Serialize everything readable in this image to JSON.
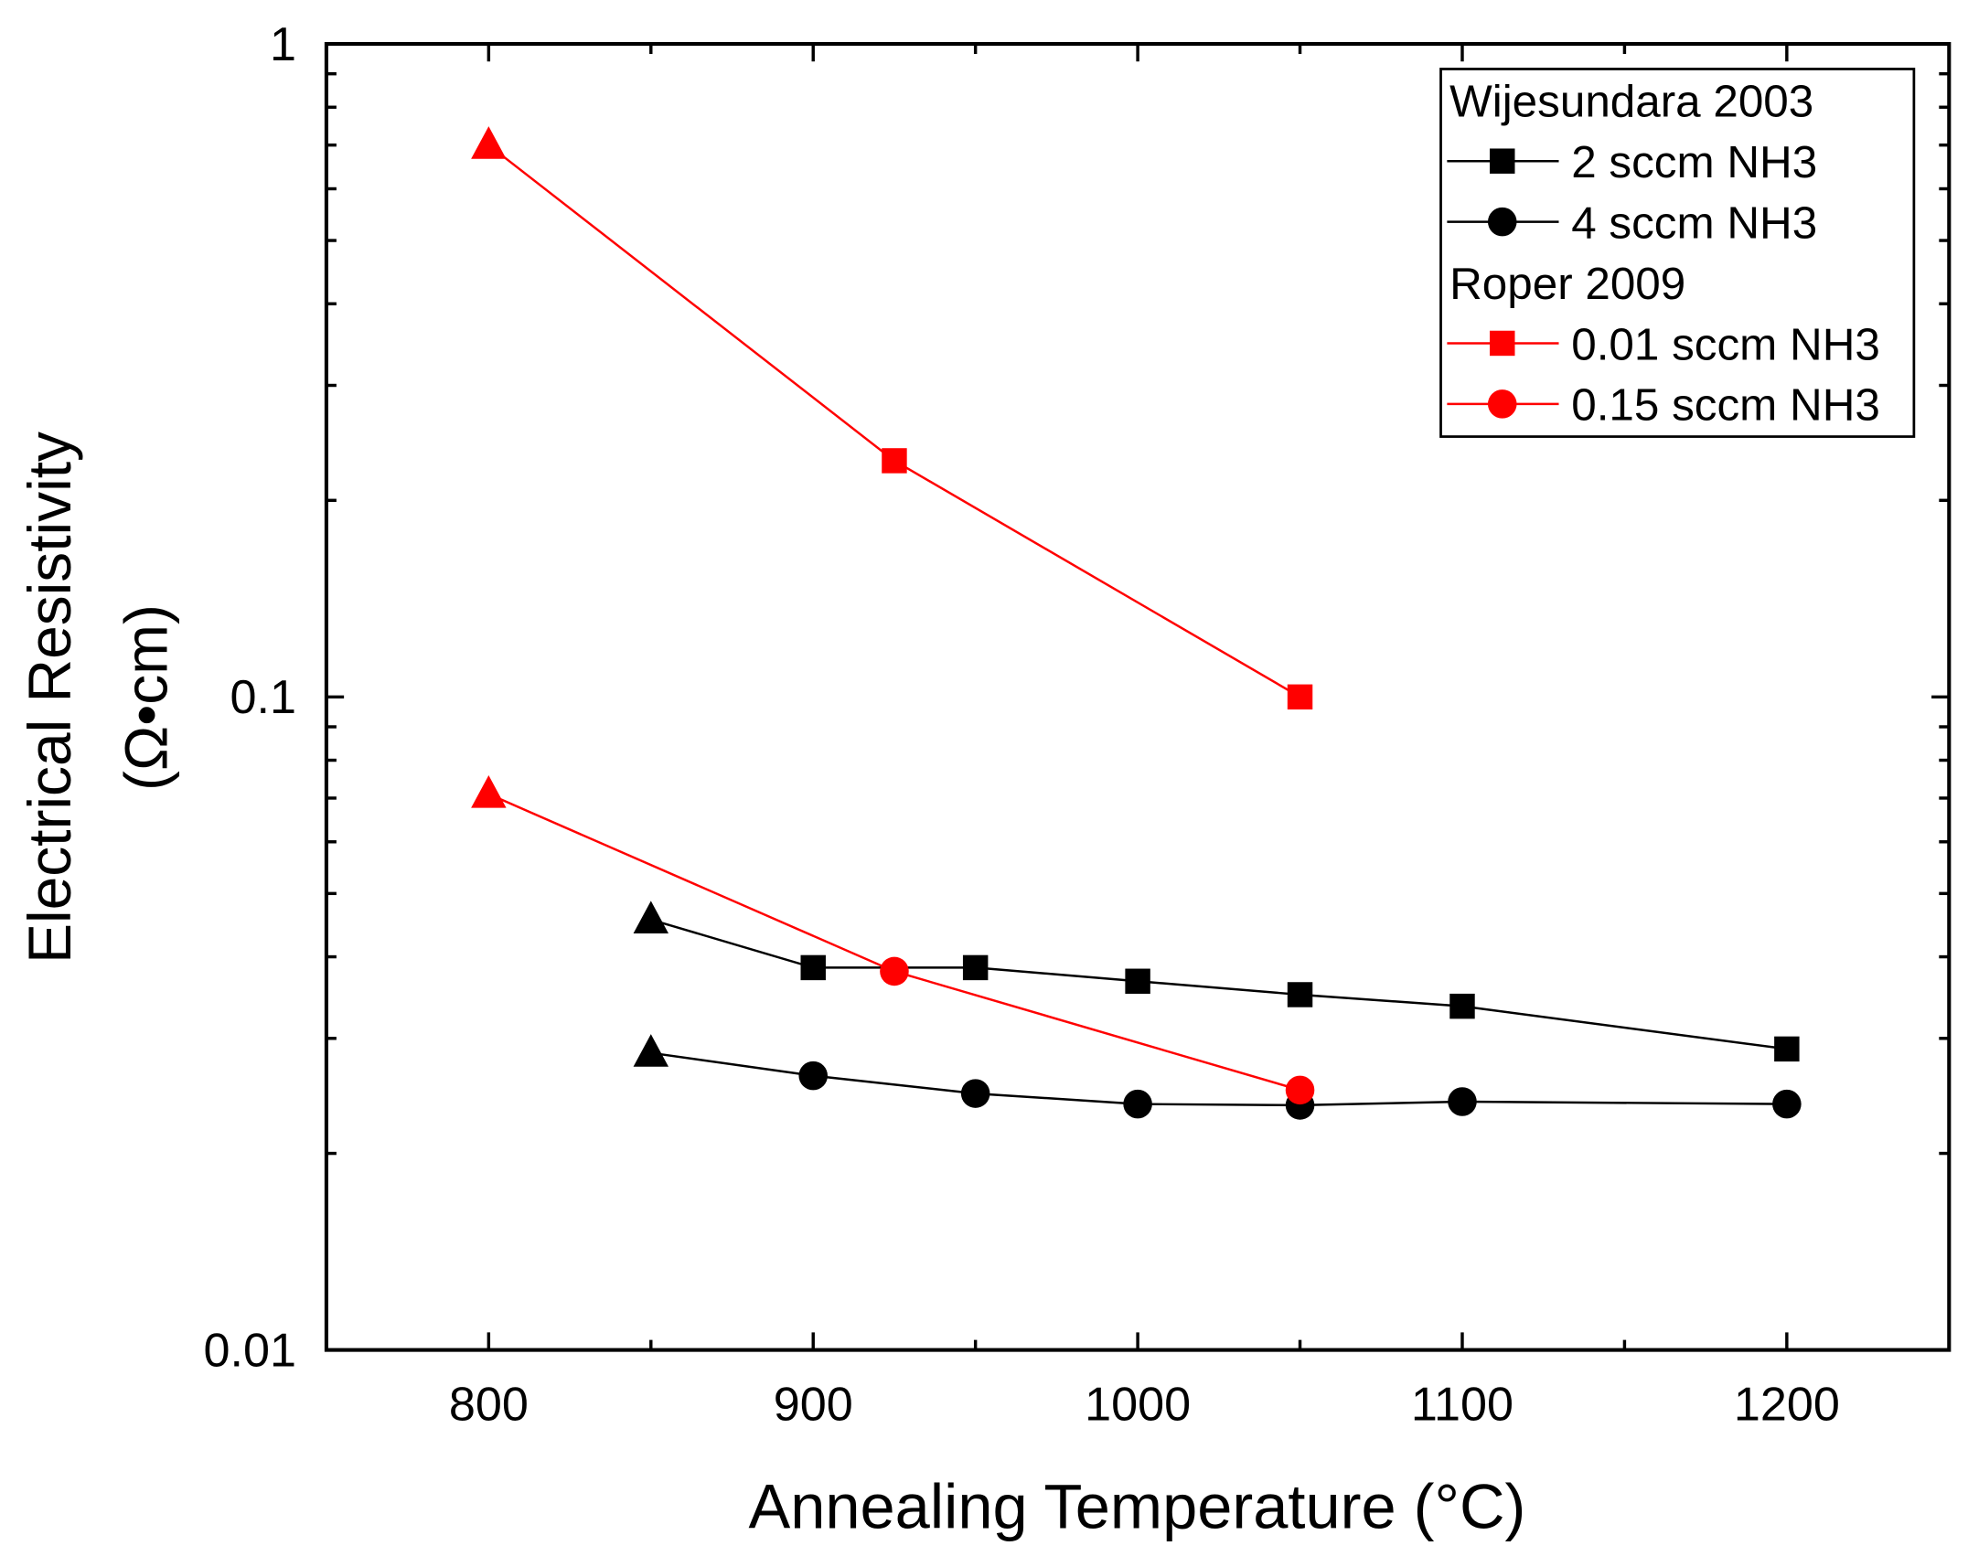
{
  "chart_data": {
    "type": "line",
    "xlabel": "Annealing Temperature (°C)",
    "ylabel": "Electrical Resistivity",
    "ylabel_units": "(Ω•cm)",
    "xlim": [
      750,
      1250
    ],
    "ylim": [
      0.01,
      1
    ],
    "yscale": "log",
    "x_ticks": [
      800,
      900,
      1000,
      1100,
      1200
    ],
    "x_tick_labels": [
      "800",
      "900",
      "1000",
      "1100",
      "1200"
    ],
    "y_ticks": [
      0.01,
      0.1,
      1
    ],
    "y_tick_labels": [
      "0.01",
      "0.1",
      "1"
    ],
    "grid": false,
    "legend_position": "top-right",
    "legend": [
      {
        "type": "header",
        "label": "Wijesundara 2003"
      },
      {
        "type": "entry",
        "label": "2 sccm NH3",
        "series": 0
      },
      {
        "type": "entry",
        "label": "4 sccm NH3",
        "series": 1
      },
      {
        "type": "header",
        "label": "Roper 2009"
      },
      {
        "type": "entry",
        "label": "0.01 sccm NH3",
        "series": 2
      },
      {
        "type": "entry",
        "label": "0.15 sccm NH3",
        "series": 3
      }
    ],
    "series": [
      {
        "name": "2 sccm NH3",
        "color": "#000000",
        "marker": "square",
        "first_marker": "triangle",
        "x": [
          850,
          900,
          950,
          1000,
          1050,
          1100,
          1200
        ],
        "y": [
          0.0456,
          0.0385,
          0.0385,
          0.0367,
          0.035,
          0.0336,
          0.0289
        ]
      },
      {
        "name": "4 sccm NH3",
        "color": "#000000",
        "marker": "circle",
        "first_marker": "triangle",
        "x": [
          850,
          900,
          950,
          1000,
          1050,
          1100,
          1200
        ],
        "y": [
          0.0285,
          0.0263,
          0.0247,
          0.0238,
          0.0237,
          0.024,
          0.0238
        ]
      },
      {
        "name": "0.01 sccm NH3",
        "color": "#ff0000",
        "marker": "square",
        "first_marker": "triangle",
        "x": [
          800,
          925,
          1050
        ],
        "y": [
          0.7,
          0.23,
          0.1
        ]
      },
      {
        "name": "0.15 sccm NH3",
        "color": "#ff0000",
        "marker": "circle",
        "first_marker": "triangle",
        "x": [
          800,
          925,
          1050
        ],
        "y": [
          0.071,
          0.038,
          0.025
        ]
      }
    ]
  }
}
